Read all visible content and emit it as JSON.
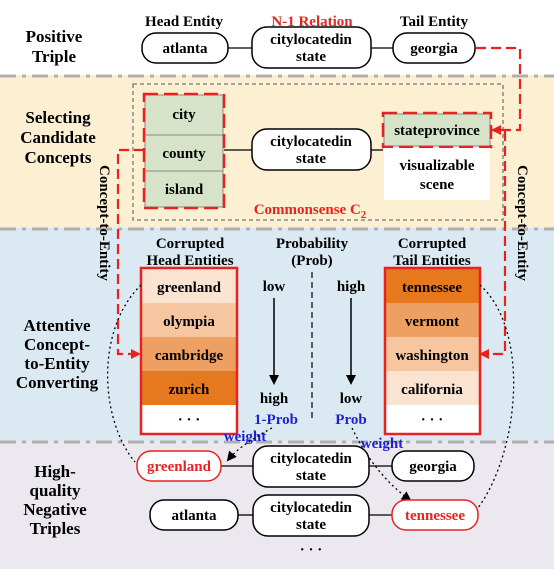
{
  "positive": {
    "section_label": [
      "Positive",
      "Triple"
    ],
    "head_header": "Head Entity",
    "relation_header": "N-1 Relation",
    "tail_header": "Tail Entity",
    "head": "atlanta",
    "relation": [
      "citylocatedin",
      "state"
    ],
    "tail": "georgia"
  },
  "selecting": {
    "section_label": [
      "Selecting",
      "Candidate",
      "Concepts"
    ],
    "head_concepts": [
      "city",
      "county",
      "island"
    ],
    "relation": [
      "citylocatedin",
      "state"
    ],
    "tail_concepts": [
      "stateprovince"
    ],
    "tail_other": [
      "visualizable",
      "scene"
    ],
    "commonsense_label": "Commonsense C",
    "commonsense_sub": "2",
    "left_arrow_label": "Concept-to-Entity",
    "right_arrow_label": "Concept-to-Entity"
  },
  "attentive": {
    "section_label": [
      "Attentive",
      "Concept-",
      "to-Entity",
      "Converting"
    ],
    "head_header": [
      "Corrupted",
      "Head Entities"
    ],
    "prob_header": [
      "Probability",
      "(Prob)"
    ],
    "tail_header": [
      "Corrupted",
      "Tail Entities"
    ],
    "head_entities": [
      "greenland",
      "olympia",
      "cambridge",
      "zurich",
      "· · ·"
    ],
    "tail_entities": [
      "tennessee",
      "vermont",
      "washington",
      "california",
      "· · ·"
    ],
    "left_scale": [
      "low",
      "high"
    ],
    "right_scale": [
      "high",
      "low"
    ],
    "left_weight_label": "1-Prob",
    "right_weight_label": "Prob",
    "weight_word": "weight"
  },
  "negative": {
    "section_label": [
      "High-",
      "quality",
      "Negative",
      "Triples"
    ],
    "triple1": {
      "head": "greenland",
      "relation": [
        "citylocatedin",
        "state"
      ],
      "tail": "georgia"
    },
    "triple2": {
      "head": "atlanta",
      "relation": [
        "citylocatedin",
        "state"
      ],
      "tail": "tennessee"
    },
    "ellipsis": "· · ·"
  },
  "colors": {
    "section_yellow": "#fcefd2",
    "section_blue": "#dbeaf2",
    "section_purple": "#ebe8f0",
    "concept_green": "#d6e3c8",
    "red": "#e8231f",
    "blue_text": "#1f1fd6",
    "heat_dark": "#e6781e",
    "heat_mid": "#f5c6a0",
    "heat_light": "#fbe3d2"
  }
}
